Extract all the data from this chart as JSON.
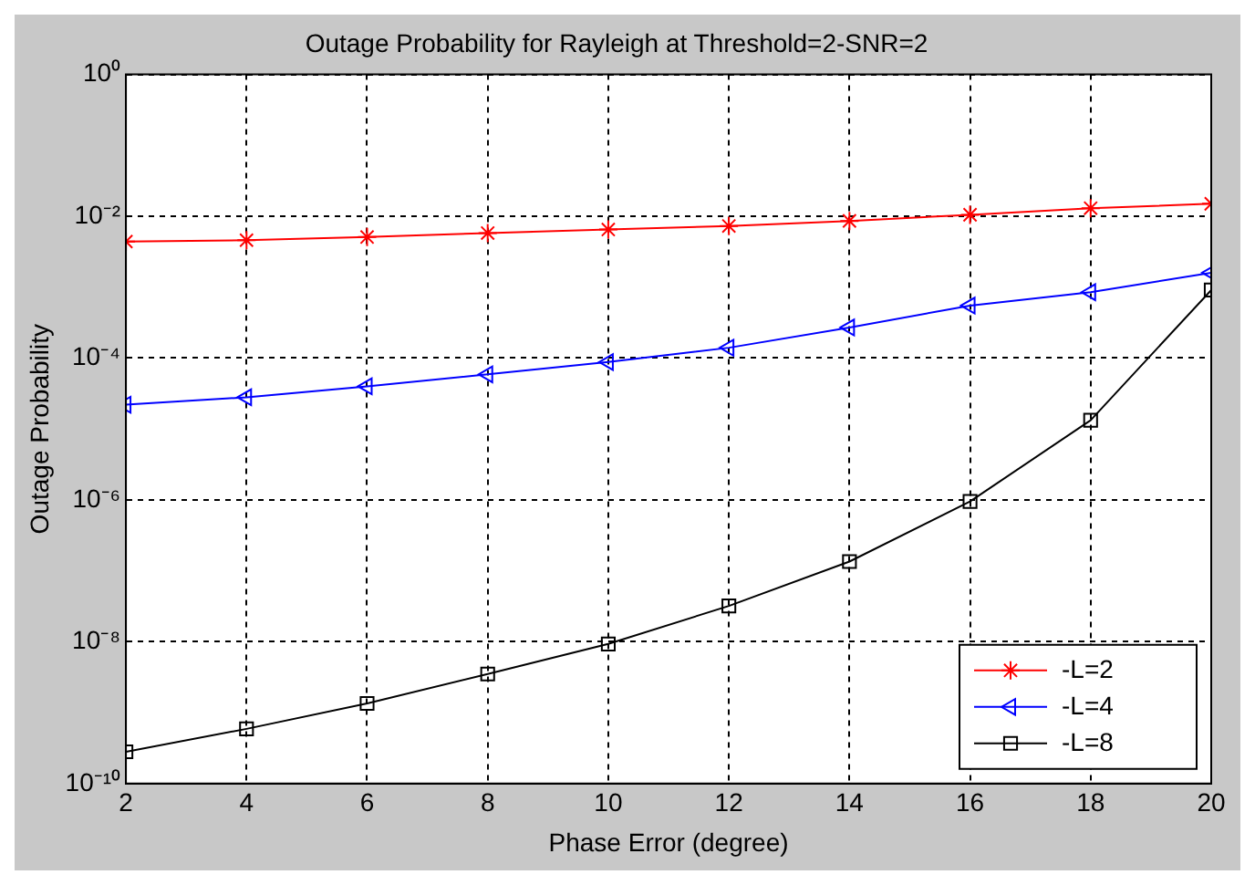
{
  "chart_data": {
    "type": "line",
    "title": "Outage Probability for Rayleigh at Threshold=2-SNR=2",
    "xlabel": "Phase Error (degree)",
    "ylabel": "Outage Probability",
    "x": [
      2,
      4,
      6,
      8,
      10,
      12,
      14,
      16,
      18,
      20
    ],
    "series": [
      {
        "name": "-L=2",
        "color": "#ff0000",
        "marker": "cross",
        "values": [
          0.0044,
          0.0046,
          0.0051,
          0.0058,
          0.0065,
          0.0073,
          0.0086,
          0.0105,
          0.013,
          0.015
        ]
      },
      {
        "name": "-L=4",
        "color": "#0000ff",
        "marker": "triangle",
        "values": [
          2.2e-05,
          2.8e-05,
          4e-05,
          5.9e-05,
          8.8e-05,
          0.00014,
          0.00027,
          0.00055,
          0.00085,
          0.0016
        ]
      },
      {
        "name": "-L=8",
        "color": "#000000",
        "marker": "square",
        "values": [
          2.8e-10,
          5.9e-10,
          1.35e-09,
          3.5e-09,
          9.3e-09,
          3.2e-08,
          1.35e-07,
          9.5e-07,
          1.33e-05,
          0.00091
        ]
      }
    ],
    "log": "y",
    "xlim": [
      2,
      20
    ],
    "xticks": [
      2,
      4,
      6,
      8,
      10,
      12,
      14,
      16,
      18,
      20
    ],
    "ylim": [
      1e-10,
      1
    ],
    "yticks": [
      {
        "value": 1e-10,
        "label": "10⁻¹⁰"
      },
      {
        "value": 1e-08,
        "label": "10⁻⁸"
      },
      {
        "value": 1e-06,
        "label": "10⁻⁶"
      },
      {
        "value": 0.0001,
        "label": "10⁻⁴"
      },
      {
        "value": 0.01,
        "label": "10⁻²"
      },
      {
        "value": 1,
        "label": "10⁰"
      }
    ],
    "grid": true,
    "legend": "bottom right",
    "line_style": "solid"
  }
}
